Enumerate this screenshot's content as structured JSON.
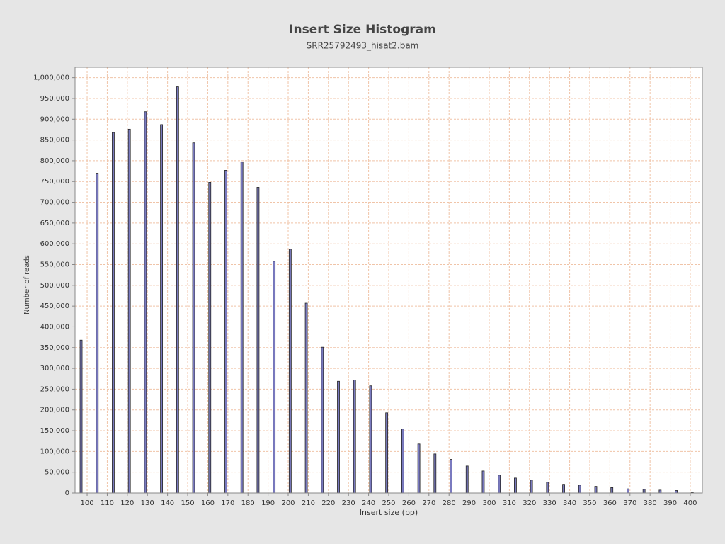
{
  "chart_data": {
    "type": "bar",
    "title": "Insert Size Histogram",
    "subtitle": "SRR25792493_hisat2.bam",
    "x_label": "Insert size (bp)",
    "y_label": "Number of reads",
    "x": [
      97,
      105,
      113,
      121,
      129,
      137,
      145,
      153,
      161,
      169,
      177,
      185,
      193,
      201,
      209,
      217,
      225,
      233,
      241,
      249,
      257,
      265,
      273,
      281,
      289,
      297,
      305,
      313,
      321,
      329,
      337,
      345,
      353,
      361,
      369,
      377,
      385,
      393,
      401
    ],
    "values": [
      368000,
      770000,
      868000,
      876000,
      918000,
      887000,
      978000,
      843000,
      748000,
      777000,
      797000,
      736000,
      558000,
      587000,
      457000,
      351000,
      269000,
      272000,
      258000,
      193000,
      154000,
      118000,
      94000,
      81000,
      65000,
      53000,
      43000,
      36000,
      31000,
      26000,
      21000,
      19000,
      16000,
      13000,
      10000,
      9000,
      7000,
      6000,
      1000
    ],
    "color": "#7a7abf",
    "xlim": [
      94,
      406
    ],
    "ylim": [
      0,
      1025000
    ],
    "xticks": [
      100,
      110,
      120,
      130,
      140,
      150,
      160,
      170,
      180,
      190,
      200,
      210,
      220,
      230,
      240,
      250,
      260,
      270,
      280,
      290,
      300,
      310,
      320,
      330,
      340,
      350,
      360,
      370,
      380,
      390,
      400
    ],
    "yticks": [
      0,
      {
        "value": 50000,
        "label": "50,000"
      },
      {
        "value": 100000,
        "label": "100,000"
      },
      {
        "value": 150000,
        "label": "150,000"
      },
      {
        "value": 200000,
        "label": "200,000"
      },
      {
        "value": 250000,
        "label": "250,000"
      },
      {
        "value": 300000,
        "label": "300,000"
      },
      {
        "value": 350000,
        "label": "350,000"
      },
      {
        "value": 400000,
        "label": "400,000"
      },
      {
        "value": 450000,
        "label": "450,000"
      },
      {
        "value": 500000,
        "label": "500,000"
      },
      {
        "value": 550000,
        "label": "550,000"
      },
      {
        "value": 600000,
        "label": "600,000"
      },
      {
        "value": 650000,
        "label": "650,000"
      },
      {
        "value": 700000,
        "label": "700,000"
      },
      {
        "value": 750000,
        "label": "750,000"
      },
      {
        "value": 800000,
        "label": "800,000"
      },
      {
        "value": 850000,
        "label": "850,000"
      },
      {
        "value": 900000,
        "label": "900,000"
      },
      {
        "value": 950000,
        "label": "950,000"
      },
      {
        "value": 1000000,
        "label": "1,000,000"
      }
    ],
    "grid": true
  }
}
